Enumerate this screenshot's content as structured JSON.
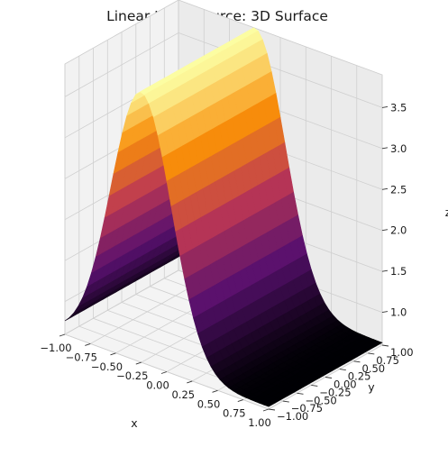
{
  "chart_data": {
    "type": "surface",
    "title": "Linear Light Source: 3D Surface",
    "xlabel": "x",
    "ylabel": "y",
    "zlabel": "z",
    "xlim": [
      -1.0,
      1.0
    ],
    "ylim": [
      -1.0,
      1.0
    ],
    "zlim": [
      0.6,
      3.9
    ],
    "x_ticks": [
      "−1.00",
      "−0.75",
      "−0.50",
      "−0.25",
      "0.00",
      "0.25",
      "0.50",
      "0.75",
      "1.00"
    ],
    "y_ticks": [
      "−1.00",
      "−0.75",
      "−0.50",
      "−0.25",
      "0.00",
      "0.25",
      "0.50",
      "0.75",
      "1.00"
    ],
    "z_ticks": [
      "1.0",
      "1.5",
      "2.0",
      "2.5",
      "3.0",
      "3.5"
    ],
    "surface": {
      "description_of_values": "z is constant along y and peaks along x near x = -0.25",
      "z_min": 0.63,
      "z_max": 3.9,
      "ridge_x": -0.25
    },
    "colormap": "inferno",
    "grid": true
  }
}
